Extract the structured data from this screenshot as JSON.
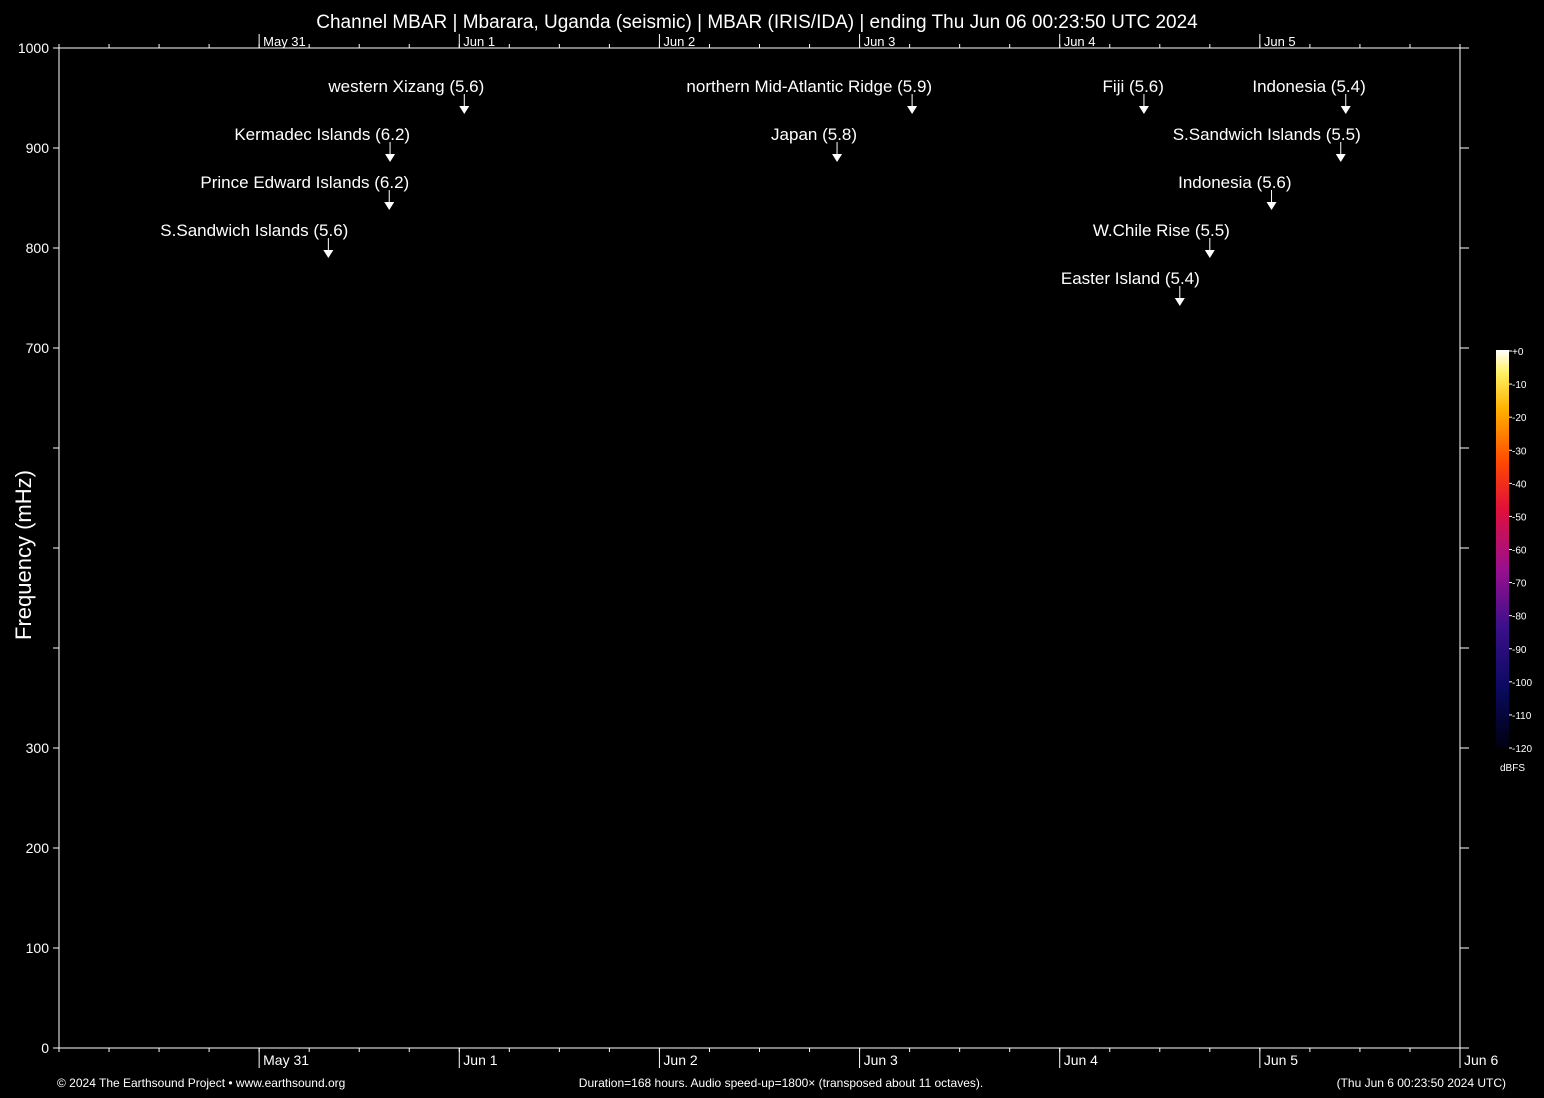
{
  "chart_data": {
    "type": "heatmap",
    "title": "Channel MBAR | Mbarara, Uganda (seismic) | MBAR (IRIS/IDA) | ending Thu Jun 06 00:23:50 UTC 2024",
    "ylabel": "Frequency (mHz)",
    "xlabel": "",
    "ylim": [
      0,
      1000
    ],
    "y_ticks": [
      0,
      100,
      200,
      300,
      400,
      500,
      600,
      700,
      800,
      900,
      1000
    ],
    "y_tick_labels": [
      "0",
      "100",
      "200",
      "300",
      "",
      "",
      "",
      "700",
      "800",
      "900",
      "1000"
    ],
    "x_range_hours": [
      0,
      168
    ],
    "x_date_ticks": [
      {
        "label": "May 31",
        "hours": 24
      },
      {
        "label": "Jun  1",
        "hours": 48
      },
      {
        "label": "Jun  2",
        "hours": 72
      },
      {
        "label": "Jun  3",
        "hours": 96
      },
      {
        "label": "Jun  4",
        "hours": 120
      },
      {
        "label": "Jun  5",
        "hours": 144
      },
      {
        "label": "Jun  6",
        "hours": 168
      }
    ],
    "events": [
      {
        "label": "western Xizang (5.6)",
        "hours": 48.6,
        "row": 0
      },
      {
        "label": "northern Mid-Atlantic Ridge (5.9)",
        "hours": 102.3,
        "row": 0
      },
      {
        "label": "Fiji (5.6)",
        "hours": 130.1,
        "row": 0
      },
      {
        "label": "Indonesia (5.4)",
        "hours": 154.3,
        "row": 0
      },
      {
        "label": "Kermadec Islands (6.2)",
        "hours": 39.7,
        "row": 1
      },
      {
        "label": "Japan (5.8)",
        "hours": 93.3,
        "row": 1
      },
      {
        "label": "S.Sandwich Islands (5.5)",
        "hours": 153.7,
        "row": 1
      },
      {
        "label": "Prince Edward Islands (6.2)",
        "hours": 39.6,
        "row": 2
      },
      {
        "label": "Indonesia (5.6)",
        "hours": 145.4,
        "row": 2
      },
      {
        "label": "S.Sandwich Islands (5.6)",
        "hours": 32.3,
        "row": 3
      },
      {
        "label": "W.Chile Rise (5.5)",
        "hours": 138.0,
        "row": 3
      },
      {
        "label": "Easter Island (5.4)",
        "hours": 134.4,
        "row": 4
      }
    ],
    "colorbar": {
      "unit": "dBFS",
      "labels": [
        "+0",
        "-10",
        "-20",
        "-30",
        "-40",
        "-50",
        "-60",
        "-70",
        "-80",
        "-90",
        "-100",
        "-110",
        "-120"
      ]
    }
  },
  "footer": {
    "copyright": "© 2024 The Earthsound Project • www.earthsound.org",
    "duration": "Duration=168 hours. Audio speed-up=1800× (transposed about 11 octaves).",
    "timestamp": "(Thu Jun  6 00:23:50 2024 UTC)"
  }
}
